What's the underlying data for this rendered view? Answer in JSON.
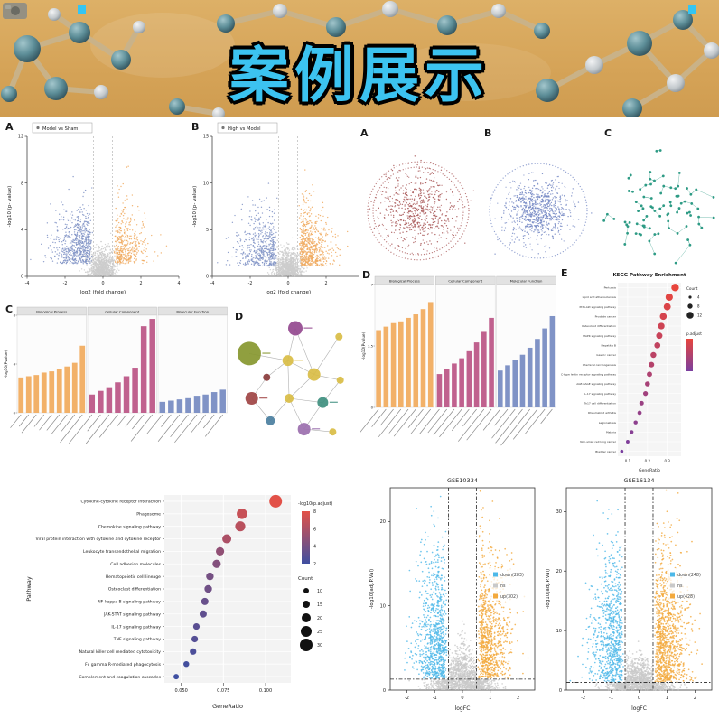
{
  "banner": {
    "title": "案例展示",
    "background_color": "#d5a357",
    "title_color": "#3cc3f0"
  },
  "panels": {
    "volcano_a": {
      "letter": "A"
    },
    "volcano_b": {
      "letter": "B"
    },
    "cluster_a": {
      "letter": "A"
    },
    "cluster_b": {
      "letter": "B"
    },
    "cluster_c": {
      "letter": "C"
    },
    "go_left": {
      "letter": "C"
    },
    "network": {
      "letter": "D"
    },
    "go_right": {
      "letter": "D"
    },
    "kegg_e": {
      "letter": "E"
    }
  },
  "chart_data": [
    {
      "id": "volcano_a",
      "type": "scatter",
      "subtype": "volcano",
      "title": "Model vs Sham",
      "xlabel": "log2 (fold change)",
      "ylabel": "-log10 (p- value)",
      "xlim": [
        -4,
        4
      ],
      "ylim": [
        0,
        12
      ],
      "xticks": [
        -4,
        -2,
        0,
        2,
        4
      ],
      "yticks": [
        0,
        4,
        8,
        12
      ],
      "vlines": [
        -0.5,
        0.5
      ],
      "groups": [
        {
          "name": "down",
          "color": "#8093c6",
          "n": 650
        },
        {
          "name": "ns",
          "color": "#cccccc",
          "n": 1000
        },
        {
          "name": "up",
          "color": "#f0a95e",
          "n": 420
        }
      ]
    },
    {
      "id": "volcano_b",
      "type": "scatter",
      "subtype": "volcano",
      "title": "High vs Model",
      "xlabel": "log2 (fold change)",
      "ylabel": "-log10 (p- value)",
      "xlim": [
        -4,
        4
      ],
      "ylim": [
        0,
        15
      ],
      "xticks": [
        -4,
        -2,
        0,
        2,
        4
      ],
      "yticks": [
        0,
        5,
        10,
        15
      ],
      "vlines": [
        -0.5,
        0.5
      ],
      "groups": [
        {
          "name": "down",
          "color": "#8093c6",
          "n": 520
        },
        {
          "name": "ns",
          "color": "#cccccc",
          "n": 1000
        },
        {
          "name": "up",
          "color": "#f0a95e",
          "n": 650
        }
      ]
    },
    {
      "id": "cluster_a",
      "type": "scatter",
      "subtype": "cluster",
      "color": "#a85757",
      "n": 480,
      "sd": 20,
      "halo": 140,
      "rings": 2,
      "R": 56
    },
    {
      "id": "cluster_b",
      "type": "scatter",
      "subtype": "cluster",
      "color": "#7286c3",
      "n": 640,
      "sd": 16,
      "halo": 150,
      "rings": 1,
      "R": 54
    },
    {
      "id": "cluster_c",
      "type": "scatter",
      "subtype": "cluster",
      "color": "#2e9b85",
      "n": 85,
      "sd": 26,
      "network": true
    },
    {
      "id": "go_left",
      "type": "bar",
      "subtype": "go-facets",
      "ylabel": "-log10(Pvalue)",
      "ylim": [
        0,
        8
      ],
      "facets": [
        {
          "name": "Biological Process",
          "color": "#f2b169",
          "values": [
            2.9,
            3.0,
            3.1,
            3.3,
            3.4,
            3.6,
            3.8,
            4.1,
            5.5
          ]
        },
        {
          "name": "Cellular Component",
          "color": "#c0618e",
          "values": [
            1.5,
            1.8,
            2.1,
            2.5,
            3.0,
            3.7,
            7.1,
            7.7
          ]
        },
        {
          "name": "Molecular Function",
          "color": "#8093c6",
          "values": [
            0.9,
            1.0,
            1.1,
            1.2,
            1.4,
            1.5,
            1.7,
            1.9
          ]
        }
      ]
    },
    {
      "id": "network_d",
      "type": "network",
      "nodes": [
        {
          "x": 0.13,
          "y": 0.28,
          "r": 13,
          "c": "#87972f",
          "tag": true
        },
        {
          "x": 0.5,
          "y": 0.1,
          "r": 8,
          "c": "#94498f",
          "tag": true
        },
        {
          "x": 0.85,
          "y": 0.16,
          "r": 4,
          "c": "#d9bd45",
          "tag": false
        },
        {
          "x": 0.44,
          "y": 0.33,
          "r": 6,
          "c": "#d9bd45",
          "tag": true
        },
        {
          "x": 0.65,
          "y": 0.43,
          "r": 7,
          "c": "#d9bd45",
          "tag": false
        },
        {
          "x": 0.27,
          "y": 0.45,
          "r": 4,
          "c": "#8a3c3c",
          "tag": false
        },
        {
          "x": 0.15,
          "y": 0.6,
          "r": 7,
          "c": "#a04444",
          "tag": true
        },
        {
          "x": 0.45,
          "y": 0.6,
          "r": 5,
          "c": "#d9bd45",
          "tag": false
        },
        {
          "x": 0.72,
          "y": 0.63,
          "r": 6,
          "c": "#3f8f7f",
          "tag": true
        },
        {
          "x": 0.3,
          "y": 0.76,
          "r": 5,
          "c": "#4b7fa0",
          "tag": false
        },
        {
          "x": 0.57,
          "y": 0.82,
          "r": 7,
          "c": "#9b6fae",
          "tag": true
        },
        {
          "x": 0.86,
          "y": 0.47,
          "r": 4,
          "c": "#d9bd45",
          "tag": false
        },
        {
          "x": 0.8,
          "y": 0.84,
          "r": 4,
          "c": "#d9bd45",
          "tag": false
        }
      ],
      "edges": [
        [
          0,
          3
        ],
        [
          1,
          3
        ],
        [
          2,
          4
        ],
        [
          3,
          4
        ],
        [
          3,
          5
        ],
        [
          3,
          7
        ],
        [
          4,
          7
        ],
        [
          4,
          11
        ],
        [
          5,
          6
        ],
        [
          6,
          9
        ],
        [
          7,
          9
        ],
        [
          7,
          10
        ],
        [
          8,
          10
        ],
        [
          8,
          11
        ],
        [
          10,
          12
        ],
        [
          7,
          8
        ],
        [
          1,
          4
        ]
      ]
    },
    {
      "id": "go_right",
      "type": "bar",
      "subtype": "go-facets",
      "ylabel": "-log10(Pvalue)",
      "ylim": [
        0,
        7
      ],
      "facets": [
        {
          "name": "Biological Process",
          "color": "#f2b169",
          "values": [
            4.4,
            4.6,
            4.8,
            4.9,
            5.1,
            5.3,
            5.6,
            6.0
          ]
        },
        {
          "name": "Cellular Component",
          "color": "#c0618e",
          "values": [
            1.9,
            2.2,
            2.5,
            2.8,
            3.2,
            3.7,
            4.3,
            5.1
          ]
        },
        {
          "name": "Molecular Function",
          "color": "#8093c6",
          "values": [
            2.1,
            2.4,
            2.7,
            3.0,
            3.4,
            3.9,
            4.5,
            5.2
          ]
        }
      ]
    },
    {
      "id": "kegg_e",
      "type": "dotplot",
      "title": "KEGG Pathway Enrichment",
      "xlabel": "GeneRatio",
      "xlim": [
        0.05,
        0.37
      ],
      "xticks": [
        0.1,
        0.2,
        0.3
      ],
      "count_legend": {
        "title": "Count",
        "values": [
          4,
          8,
          12
        ]
      },
      "color_legend": {
        "title": "p.adjust",
        "top": "#e8453c",
        "bottom": "#7a3fa0"
      },
      "rows": [
        {
          "label": "Pertussis",
          "ratio": 0.34
        },
        {
          "label": "Lipid and atherosclerosis",
          "ratio": 0.31
        },
        {
          "label": "PI3K-Akt signaling pathway",
          "ratio": 0.3
        },
        {
          "label": "Prostate cancer",
          "ratio": 0.28
        },
        {
          "label": "Osteoclast differentiation",
          "ratio": 0.27
        },
        {
          "label": "MAPK signaling pathway",
          "ratio": 0.26
        },
        {
          "label": "Hepatitis B",
          "ratio": 0.25
        },
        {
          "label": "Gastric cancer",
          "ratio": 0.23
        },
        {
          "label": "Chemical carcinogenesis",
          "ratio": 0.22
        },
        {
          "label": "C-type lectin receptor signaling pathway",
          "ratio": 0.21
        },
        {
          "label": "AGE-RAGE signaling pathway",
          "ratio": 0.2
        },
        {
          "label": "IL-17 signaling pathway",
          "ratio": 0.19
        },
        {
          "label": "Th17 cell differentiation",
          "ratio": 0.17
        },
        {
          "label": "Rheumatoid arthritis",
          "ratio": 0.16
        },
        {
          "label": "Legionellosis",
          "ratio": 0.14
        },
        {
          "label": "Malaria",
          "ratio": 0.12
        },
        {
          "label": "Non-small cell lung cancer",
          "ratio": 0.1
        },
        {
          "label": "Bladder cancer",
          "ratio": 0.07
        }
      ]
    },
    {
      "id": "kegg_dotplot",
      "type": "dotplot",
      "ylabel_axis": "Pathway",
      "xlabel": "GeneRatio",
      "xlim": [
        0.04,
        0.115
      ],
      "xticks": [
        0.05,
        0.075,
        0.1
      ],
      "color_legend": {
        "title": "-log10(p.adjust)",
        "ticks": [
          8,
          6,
          4,
          2
        ],
        "colors": [
          "#e25148",
          "#3f4fa1"
        ]
      },
      "size_legend": {
        "title": "Count",
        "values": [
          10,
          15,
          20,
          25,
          30
        ]
      },
      "rows": [
        {
          "pathway": "Cytokine-cytokine receptor interaction",
          "ratio": 0.106,
          "count": 30,
          "padj": 8
        },
        {
          "pathway": "Phagosome",
          "ratio": 0.086,
          "count": 24,
          "padj": 7
        },
        {
          "pathway": "Chemokine signaling pathway",
          "ratio": 0.085,
          "count": 23,
          "padj": 6.5
        },
        {
          "pathway": "Viral protein interaction with cytokine and cytokine receptor",
          "ratio": 0.077,
          "count": 20,
          "padj": 6
        },
        {
          "pathway": "Leukocyte transendothelial migration",
          "ratio": 0.073,
          "count": 18,
          "padj": 5
        },
        {
          "pathway": "Cell adhesion molecules",
          "ratio": 0.071,
          "count": 18,
          "padj": 4.5
        },
        {
          "pathway": "Hematopoietic cell lineage",
          "ratio": 0.067,
          "count": 16,
          "padj": 4
        },
        {
          "pathway": "Osteoclast differentiation",
          "ratio": 0.066,
          "count": 16,
          "padj": 3.8
        },
        {
          "pathway": "NF-kappa B signaling pathway",
          "ratio": 0.064,
          "count": 15,
          "padj": 3.5
        },
        {
          "pathway": "JAK-STAT signaling pathway",
          "ratio": 0.063,
          "count": 15,
          "padj": 3.2
        },
        {
          "pathway": "IL-17 signaling pathway",
          "ratio": 0.059,
          "count": 13,
          "padj": 3
        },
        {
          "pathway": "TNF signaling pathway",
          "ratio": 0.058,
          "count": 13,
          "padj": 2.8
        },
        {
          "pathway": "Natural killer cell mediated cytotoxicity",
          "ratio": 0.057,
          "count": 13,
          "padj": 2.5
        },
        {
          "pathway": "Fc gamma R-mediated phagocytosis",
          "ratio": 0.053,
          "count": 11,
          "padj": 2.2
        },
        {
          "pathway": "Complement and coagulation cascades",
          "ratio": 0.047,
          "count": 10,
          "padj": 2
        }
      ]
    },
    {
      "id": "gse10334",
      "type": "scatter",
      "subtype": "volcano2",
      "title": "GSE10334",
      "xlabel": "logFC",
      "ylabel": "-log10(adj.P.Val)",
      "xlim": [
        -2.6,
        2.6
      ],
      "ylim": [
        0,
        24
      ],
      "xticks": [
        -2,
        -1,
        0,
        1,
        2
      ],
      "yticks": [
        0,
        10,
        20
      ],
      "vlines": [
        -0.5,
        0.5
      ],
      "hline": 1.3,
      "legend": [
        {
          "label": "down(283)",
          "color": "#4db8e8"
        },
        {
          "label": "ns",
          "color": "#c9c9c9"
        },
        {
          "label": "up(302)",
          "color": "#f3a93c"
        }
      ],
      "n": {
        "down": 850,
        "ns": 1300,
        "up": 850
      }
    },
    {
      "id": "gse16134",
      "type": "scatter",
      "subtype": "volcano2",
      "title": "GSE16134",
      "xlabel": "logFC",
      "ylabel": "-log10(adj.P.Val)",
      "xlim": [
        -2.6,
        2.6
      ],
      "ylim": [
        0,
        34
      ],
      "xticks": [
        -2,
        -1,
        0,
        1,
        2
      ],
      "yticks": [
        0,
        10,
        20,
        30
      ],
      "vlines": [
        -0.5,
        0.5
      ],
      "hline": 1.3,
      "legend": [
        {
          "label": "down(248)",
          "color": "#4db8e8"
        },
        {
          "label": "ns",
          "color": "#c9c9c9"
        },
        {
          "label": "up(428)",
          "color": "#f3a93c"
        }
      ],
      "n": {
        "down": 780,
        "ns": 1300,
        "up": 1050
      }
    }
  ]
}
